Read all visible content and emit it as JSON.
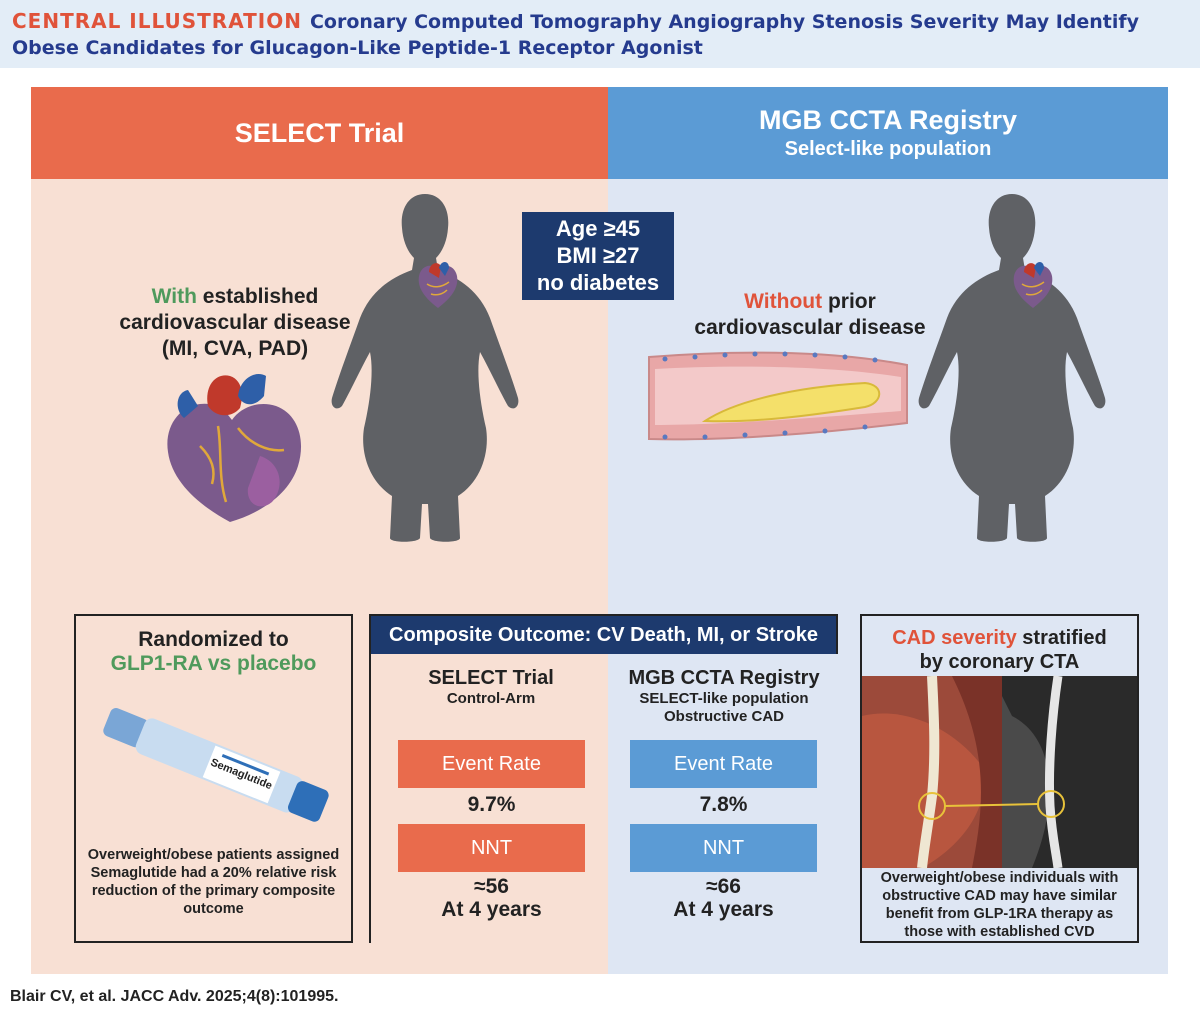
{
  "header": {
    "label": "CENTRAL ILLUSTRATION",
    "title": "Coronary Computed Tomography Angiography Stenosis Severity May Identify Obese Candidates for Glucagon-Like Peptide-1 Receptor Agonist"
  },
  "left_panel": {
    "banner": "SELECT Trial",
    "highlight": "With",
    "text": "established cardiovascular disease (MI, CVA, PAD)"
  },
  "right_panel": {
    "banner": "MGB CCTA Registry",
    "banner_sub": "Select-like population",
    "highlight": "Without",
    "text": "prior cardiovascular disease"
  },
  "criteria": [
    "Age ≥45",
    "BMI ≥27",
    "no diabetes"
  ],
  "randomized_box": {
    "title": "Randomized to",
    "title_highlight": "GLP1-RA vs placebo",
    "pen_label": "Semaglutide",
    "footer": "Overweight/obese patients assigned Semaglutide had a 20% relative risk reduction of the primary composite outcome"
  },
  "composite_box": {
    "header": "Composite Outcome: CV Death, MI, or Stroke",
    "left": {
      "title": "SELECT Trial",
      "subtitle": "Control-Arm",
      "event_label": "Event Rate",
      "event_value": "9.7%",
      "nnt_label": "NNT",
      "nnt_value": "≈56",
      "nnt_period": "At 4 years"
    },
    "right": {
      "title": "MGB CCTA Registry",
      "subtitle_1": "SELECT-like population",
      "subtitle_2": "Obstructive CAD",
      "event_label": "Event Rate",
      "event_value": "7.8%",
      "nnt_label": "NNT",
      "nnt_value": "≈66",
      "nnt_period": "At 4 years"
    }
  },
  "cad_box": {
    "title_highlight": "CAD severity",
    "title_rest": "stratified",
    "title_line2": "by coronary CTA",
    "footer": "Overweight/obese individuals with obstructive CAD may have similar benefit from GLP-1RA therapy as those with established CVD"
  },
  "citation": "Blair CV, et al. JACC Adv. 2025;4(8):101995.",
  "colors": {
    "select_orange": "#e96b4c",
    "registry_blue": "#5b9bd5",
    "navy": "#1d3a6e",
    "highlight_green": "#4f9a5c",
    "highlight_red": "#e0533a",
    "title_blue": "#253b8e"
  }
}
